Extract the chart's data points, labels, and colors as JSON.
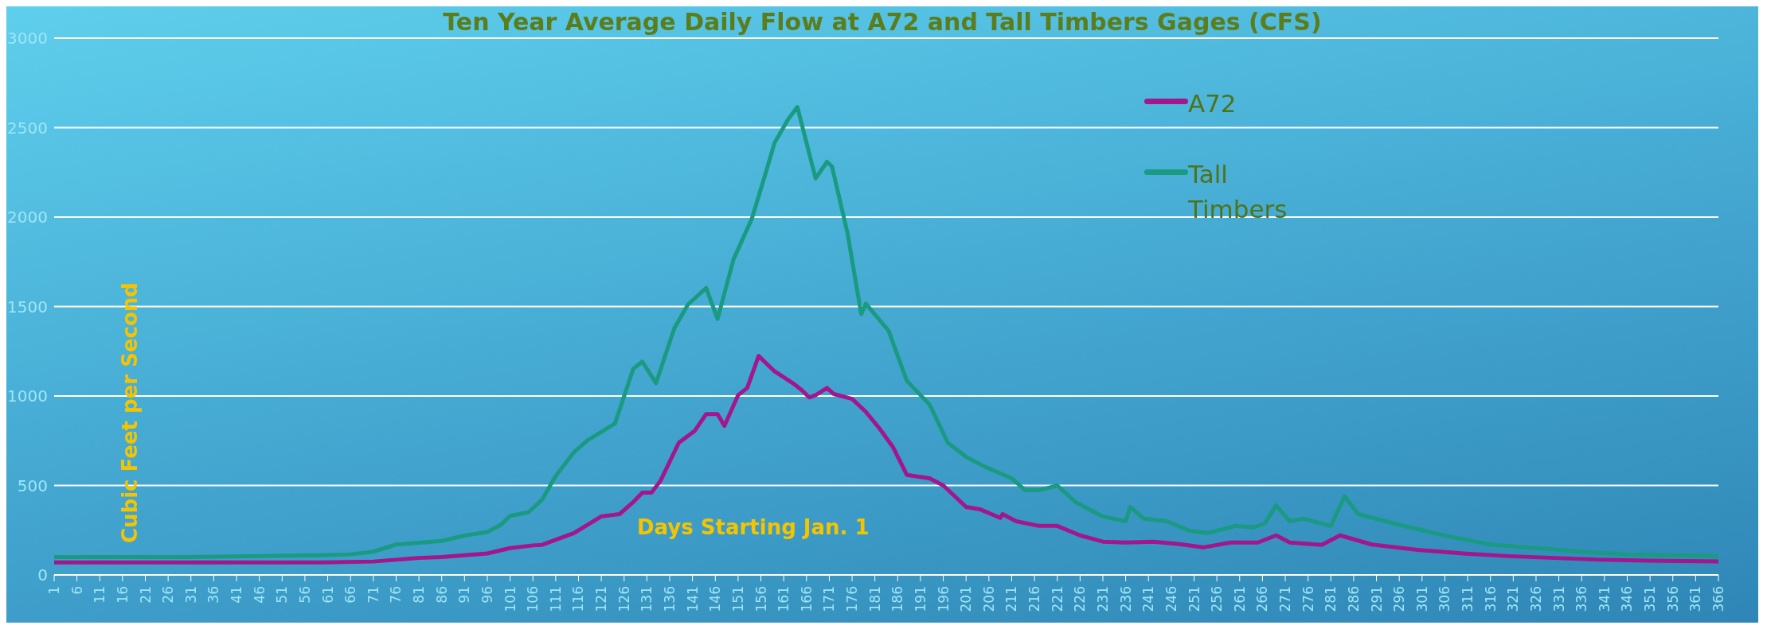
{
  "chart_data": {
    "type": "line",
    "title": "Ten Year Average Daily Flow at A72 and Tall Timbers Gages (CFS)",
    "xlabel": "Days Starting Jan. 1",
    "ylabel": "Cubic Feet per Second",
    "xlim": [
      1,
      366
    ],
    "xticks": [
      1,
      6,
      11,
      16,
      21,
      26,
      31,
      36,
      41,
      46,
      51,
      56,
      61,
      66,
      71,
      76,
      81,
      86,
      91,
      96,
      101,
      106,
      111,
      116,
      121,
      126,
      131,
      136,
      141,
      146,
      151,
      156,
      161,
      166,
      171,
      176,
      181,
      186,
      191,
      196,
      201,
      206,
      211,
      216,
      221,
      226,
      231,
      236,
      241,
      246,
      251,
      256,
      261,
      266,
      271,
      276,
      281,
      286,
      291,
      296,
      301,
      306,
      311,
      316,
      321,
      326,
      331,
      336,
      341,
      346,
      351,
      356,
      361,
      366
    ],
    "ylim": [
      0,
      3000
    ],
    "yticks": [
      0,
      500,
      1000,
      1500,
      2000,
      2500,
      3000
    ],
    "grid": "y",
    "legend": "top right",
    "marker": "none",
    "line_style": "solid",
    "series": [
      {
        "name": "A72",
        "color": "#a3168c",
        "x": [
          1,
          30,
          60,
          71,
          76,
          81,
          86,
          91,
          96,
          101,
          106,
          108,
          115,
          121,
          125,
          128,
          130,
          132,
          134,
          138,
          141.5,
          144,
          146.5,
          148,
          151,
          153,
          155.5,
          159,
          163,
          165,
          166.6,
          168,
          170.5,
          172,
          176,
          179,
          182,
          185,
          188,
          193,
          196,
          201,
          204,
          208.5,
          209,
          212,
          217,
          221,
          226,
          231,
          236,
          242,
          247.5,
          253,
          259,
          265,
          269,
          272,
          279,
          283,
          290,
          300,
          310,
          320,
          330,
          340,
          350,
          366
        ],
        "values": [
          70,
          70,
          70,
          75,
          85,
          95,
          100,
          110,
          120,
          150,
          165,
          168,
          234,
          327,
          340,
          407,
          460,
          460,
          527,
          739,
          806,
          899,
          899,
          833,
          1005,
          1045,
          1224,
          1138,
          1072,
          1032,
          992,
          1005,
          1045,
          1011,
          984,
          912,
          819,
          713,
          559,
          540,
          500,
          380,
          367,
          319,
          340,
          300,
          274,
          274,
          221,
          186,
          181,
          186,
          173,
          154,
          181,
          181,
          221,
          181,
          168,
          221,
          170,
          140,
          120,
          105,
          95,
          85,
          80,
          75
        ]
      },
      {
        "name": "Tall Timbers",
        "color": "#1a9a80",
        "x": [
          1,
          30,
          60,
          66,
          71,
          76,
          81,
          86,
          91,
          96,
          99,
          101,
          105,
          108,
          111,
          115,
          118,
          124,
          128,
          130,
          133,
          137,
          140,
          144,
          146.5,
          150,
          154,
          157,
          159,
          162,
          164,
          168,
          170.5,
          171.6,
          175,
          178,
          179,
          184,
          188,
          193,
          197,
          201,
          205,
          211,
          214,
          217,
          221,
          225,
          231,
          236,
          237,
          240,
          245,
          250,
          254,
          260,
          264,
          266.5,
          269,
          272,
          275,
          281,
          284,
          287,
          296,
          306,
          316,
          326,
          336,
          346,
          356,
          366
        ],
        "values": [
          100,
          100,
          110,
          115,
          130,
          170,
          180,
          190,
          220,
          240,
          280,
          330,
          350,
          420,
          553,
          686,
          753,
          846,
          1152,
          1192,
          1072,
          1378,
          1511,
          1604,
          1431,
          1764,
          1990,
          2242,
          2415,
          2548,
          2615,
          2216,
          2309,
          2282,
          1910,
          1458,
          1516,
          1365,
          1085,
          952,
          739,
          660,
          606,
          540,
          473,
          473,
          500,
          407,
          327,
          300,
          380,
          314,
          300,
          247,
          234,
          274,
          266,
          287,
          388,
          300,
          314,
          274,
          440,
          340,
          280,
          220,
          170,
          150,
          130,
          115,
          110,
          105
        ]
      }
    ]
  }
}
